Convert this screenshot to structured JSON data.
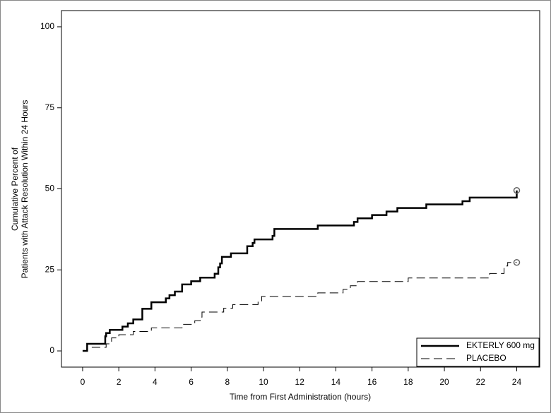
{
  "chart_data": {
    "type": "step",
    "xlabel": "Time from First Administration (hours)",
    "ylabel": [
      "Cumulative Percent of",
      "Patients with Attack Resolution Within 24 Hours"
    ],
    "xlim": [
      -1.17,
      25.27
    ],
    "ylim": [
      -5,
      105
    ],
    "xticks": [
      0,
      2,
      4,
      6,
      8,
      10,
      12,
      14,
      16,
      18,
      20,
      22,
      24
    ],
    "yticks": [
      0,
      25,
      50,
      75,
      100
    ],
    "legend": "bottom-right",
    "series": [
      {
        "name": "EKTERLY 600 mg",
        "color": "#000000",
        "dash": "solid",
        "x": [
          0,
          0.25,
          1.25,
          1.3,
          1.5,
          2.2,
          2.5,
          2.8,
          3.3,
          3.8,
          4.6,
          4.8,
          5.1,
          5.5,
          6.0,
          6.5,
          7.3,
          7.5,
          7.6,
          7.7,
          8.2,
          9.1,
          9.4,
          9.5,
          10.5,
          10.6,
          13.0,
          15.0,
          15.2,
          16.0,
          16.8,
          17.4,
          19.0,
          21.0,
          21.4,
          24.0
        ],
        "values": [
          0,
          2.2,
          4.5,
          5.5,
          6.5,
          7.5,
          8.5,
          9.7,
          13.0,
          15.0,
          16.2,
          17.2,
          18.3,
          20.5,
          21.5,
          22.6,
          23.8,
          25.8,
          27.0,
          29.0,
          30.1,
          32.3,
          33.3,
          34.4,
          35.5,
          37.6,
          38.7,
          39.8,
          40.9,
          41.9,
          43.0,
          44.1,
          45.2,
          46.2,
          47.3,
          49.5
        ],
        "censored": {
          "x": 24,
          "y": 49.5
        }
      },
      {
        "name": "PLACEBO",
        "color": "#000000",
        "dash": "dashed",
        "x": [
          0,
          0.25,
          1.3,
          1.6,
          2.0,
          2.8,
          3.8,
          5.5,
          6.2,
          6.5,
          6.6,
          7.8,
          8.3,
          9.7,
          9.9,
          13.0,
          14.4,
          14.8,
          15.2,
          18.0,
          22.5,
          23.3,
          23.5,
          24.0
        ],
        "values": [
          0,
          1.1,
          2.2,
          4.0,
          5.0,
          6.0,
          7.1,
          8.2,
          9.3,
          10.4,
          12.0,
          13.2,
          14.3,
          15.4,
          16.8,
          17.9,
          19.0,
          20.1,
          21.4,
          22.5,
          23.9,
          26.2,
          27.3,
          27.3
        ],
        "censored": {
          "x": 24,
          "y": 27.3
        }
      }
    ]
  }
}
